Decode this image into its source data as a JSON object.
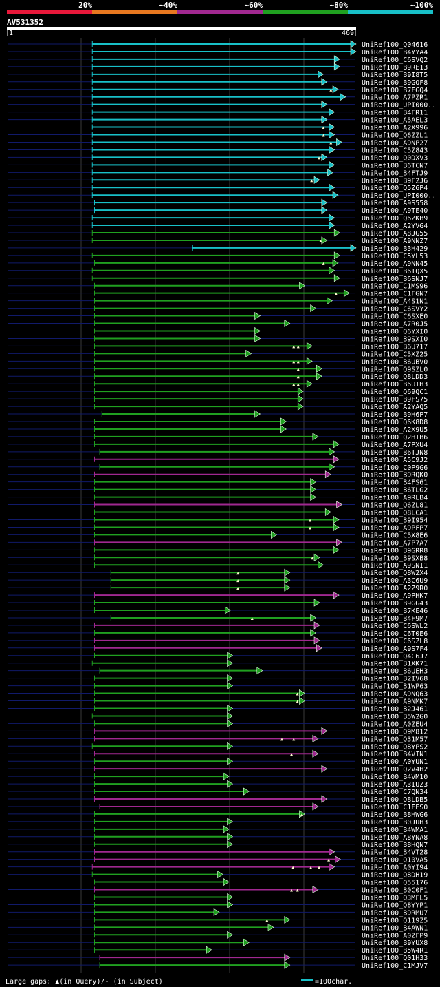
{
  "legend": {
    "thresholds": [
      "20%",
      "~40%",
      "~60%",
      "~80%",
      "~100%"
    ],
    "colors": [
      "#e8183a",
      "#e87820",
      "#a02890",
      "#20a020",
      "#18c0c8"
    ]
  },
  "query": {
    "name": "AV531352",
    "start": "1",
    "end": "469"
  },
  "footer": {
    "gaps_text": "Large gaps: ▲(in Query)/- (in Subject)",
    "scale_text": "=100char."
  },
  "chart_data": {
    "type": "alignment",
    "query_length": 469,
    "hits": [
      {
        "id": "UniRef100_Q04616",
        "cls": 4,
        "s": 115,
        "e": 469
      },
      {
        "id": "UniRef100_B4YYA4",
        "cls": 4,
        "s": 115,
        "e": 469
      },
      {
        "id": "UniRef100_C6SVQ2",
        "cls": 4,
        "s": 115,
        "e": 447
      },
      {
        "id": "UniRef100_B9RE13",
        "cls": 4,
        "s": 115,
        "e": 447
      },
      {
        "id": "UniRef100_B9I8T5",
        "cls": 4,
        "s": 115,
        "e": 425
      },
      {
        "id": "UniRef100_B9GQF8",
        "cls": 4,
        "s": 115,
        "e": 430
      },
      {
        "id": "UniRef100_B7FGQ4",
        "cls": 4,
        "s": 115,
        "e": 445,
        "g": [
          436
        ]
      },
      {
        "id": "UniRef100_A7PZR1",
        "cls": 4,
        "s": 115,
        "e": 455
      },
      {
        "id": "UniRef100_UPI000..",
        "cls": 4,
        "s": 115,
        "e": 430
      },
      {
        "id": "UniRef100_B4FR11",
        "cls": 4,
        "s": 115,
        "e": 440
      },
      {
        "id": "UniRef100_A5AEL3",
        "cls": 4,
        "s": 115,
        "e": 430
      },
      {
        "id": "UniRef100_A2X996",
        "cls": 4,
        "s": 115,
        "e": 440,
        "g": [
          426
        ]
      },
      {
        "id": "UniRef100_Q6ZZL1",
        "cls": 4,
        "s": 115,
        "e": 440,
        "g": [
          426
        ]
      },
      {
        "id": "UniRef100_A9NP27",
        "cls": 4,
        "s": 115,
        "e": 450,
        "g": [
          436
        ]
      },
      {
        "id": "UniRef100_C5Z843",
        "cls": 4,
        "s": 115,
        "e": 440
      },
      {
        "id": "UniRef100_Q0DXV3",
        "cls": 4,
        "s": 115,
        "e": 430,
        "g": [
          420
        ]
      },
      {
        "id": "UniRef100_B6TCN7",
        "cls": 4,
        "s": 115,
        "e": 440
      },
      {
        "id": "UniRef100_B4FTJ9",
        "cls": 4,
        "s": 115,
        "e": 438
      },
      {
        "id": "UniRef100_B9F2J6",
        "cls": 4,
        "s": 115,
        "e": 420,
        "g": [
          410
        ]
      },
      {
        "id": "UniRef100_Q5Z6P4",
        "cls": 4,
        "s": 115,
        "e": 440
      },
      {
        "id": "UniRef100_UPI000..",
        "cls": 4,
        "s": 115,
        "e": 445
      },
      {
        "id": "UniRef100_A9S558",
        "cls": 4,
        "s": 118,
        "e": 430
      },
      {
        "id": "UniRef100_A9TE40",
        "cls": 4,
        "s": 118,
        "e": 430
      },
      {
        "id": "UniRef100_Q6ZKB9",
        "cls": 4,
        "s": 115,
        "e": 440
      },
      {
        "id": "UniRef100_A2YVG4",
        "cls": 4,
        "s": 115,
        "e": 440
      },
      {
        "id": "UniRef100_A8JG55",
        "cls": 3,
        "s": 115,
        "e": 447
      },
      {
        "id": "UniRef100_A9NNZ7",
        "cls": 3,
        "s": 115,
        "e": 430,
        "g": [
          422
        ]
      },
      {
        "id": "UniRef100_B3H429",
        "cls": 4,
        "s": 250,
        "e": 469
      },
      {
        "id": "UniRef100_C5YL53",
        "cls": 3,
        "s": 115,
        "e": 447
      },
      {
        "id": "UniRef100_A9NN45",
        "cls": 3,
        "s": 118,
        "e": 445,
        "g": [
          426
        ]
      },
      {
        "id": "UniRef100_B6TQX5",
        "cls": 3,
        "s": 115,
        "e": 440
      },
      {
        "id": "UniRef100_B6SNJ7",
        "cls": 3,
        "s": 115,
        "e": 447
      },
      {
        "id": "UniRef100_C1MS96",
        "cls": 3,
        "s": 118,
        "e": 400
      },
      {
        "id": "UniRef100_C1FGN7",
        "cls": 3,
        "s": 118,
        "e": 460,
        "g": [
          443
        ]
      },
      {
        "id": "UniRef100_A4S1N1",
        "cls": 3,
        "s": 118,
        "e": 437
      },
      {
        "id": "UniRef100_C6SVY2",
        "cls": 3,
        "s": 118,
        "e": 415
      },
      {
        "id": "UniRef100_C6SXE0",
        "cls": 3,
        "s": 118,
        "e": 340
      },
      {
        "id": "UniRef100_A7R0J5",
        "cls": 3,
        "s": 118,
        "e": 380
      },
      {
        "id": "UniRef100_Q6YXI0",
        "cls": 3,
        "s": 118,
        "e": 340
      },
      {
        "id": "UniRef100_B9SXI0",
        "cls": 3,
        "s": 118,
        "e": 340
      },
      {
        "id": "UniRef100_B6U717",
        "cls": 3,
        "s": 118,
        "e": 410,
        "g": [
          386,
          392
        ]
      },
      {
        "id": "UniRef100_C5XZ25",
        "cls": 3,
        "s": 118,
        "e": 328
      },
      {
        "id": "UniRef100_B6UBV0",
        "cls": 3,
        "s": 118,
        "e": 410,
        "g": [
          386,
          392
        ]
      },
      {
        "id": "UniRef100_Q9SZL0",
        "cls": 3,
        "s": 118,
        "e": 423,
        "g": [
          392
        ]
      },
      {
        "id": "UniRef100_Q8LDD3",
        "cls": 3,
        "s": 118,
        "e": 423,
        "g": [
          392
        ]
      },
      {
        "id": "UniRef100_B6UTH3",
        "cls": 3,
        "s": 118,
        "e": 410,
        "g": [
          386,
          392
        ]
      },
      {
        "id": "UniRef100_Q69QC1",
        "cls": 3,
        "s": 118,
        "e": 398
      },
      {
        "id": "UniRef100_B9FS75",
        "cls": 3,
        "s": 118,
        "e": 398
      },
      {
        "id": "UniRef100_A2YAQ5",
        "cls": 3,
        "s": 118,
        "e": 398
      },
      {
        "id": "UniRef100_B9H6P7",
        "cls": 3,
        "s": 128,
        "e": 340
      },
      {
        "id": "UniRef100_Q6K8D8",
        "cls": 3,
        "s": 118,
        "e": 375
      },
      {
        "id": "UniRef100_A2X9U5",
        "cls": 3,
        "s": 118,
        "e": 375
      },
      {
        "id": "UniRef100_Q2HTB6",
        "cls": 3,
        "s": 118,
        "e": 418
      },
      {
        "id": "UniRef100_A7PXU4",
        "cls": 3,
        "s": 118,
        "e": 446
      },
      {
        "id": "UniRef100_B6TJN8",
        "cls": 3,
        "s": 125,
        "e": 440
      },
      {
        "id": "UniRef100_A5C9J2",
        "cls": 2,
        "s": 118,
        "e": 446
      },
      {
        "id": "UniRef100_C0P9G6",
        "cls": 3,
        "s": 125,
        "e": 440
      },
      {
        "id": "UniRef100_B9RQK0",
        "cls": 2,
        "s": 118,
        "e": 435
      },
      {
        "id": "UniRef100_B4FS61",
        "cls": 3,
        "s": 118,
        "e": 415
      },
      {
        "id": "UniRef100_B6TLG2",
        "cls": 3,
        "s": 118,
        "e": 415
      },
      {
        "id": "UniRef100_A9RLB4",
        "cls": 3,
        "s": 118,
        "e": 415
      },
      {
        "id": "UniRef100_Q6ZL81",
        "cls": 2,
        "s": 118,
        "e": 450
      },
      {
        "id": "UniRef100_Q8LCA1",
        "cls": 3,
        "s": 118,
        "e": 435
      },
      {
        "id": "UniRef100_B9I954",
        "cls": 3,
        "s": 118,
        "e": 446,
        "g": [
          408
        ]
      },
      {
        "id": "UniRef100_A9PFP7",
        "cls": 3,
        "s": 118,
        "e": 446,
        "g": [
          408
        ]
      },
      {
        "id": "UniRef100_C5X8E6",
        "cls": 3,
        "s": 118,
        "e": 362
      },
      {
        "id": "UniRef100_A7P7A7",
        "cls": 2,
        "s": 118,
        "e": 450
      },
      {
        "id": "UniRef100_B9GRR8",
        "cls": 3,
        "s": 118,
        "e": 446
      },
      {
        "id": "UniRef100_B9SXB8",
        "cls": 3,
        "s": 118,
        "e": 420,
        "g": [
          411
        ]
      },
      {
        "id": "UniRef100_A9SNI1",
        "cls": 3,
        "s": 118,
        "e": 425
      },
      {
        "id": "UniRef100_Q8W2X4",
        "cls": 3,
        "s": 140,
        "e": 380,
        "g": [
          311
        ]
      },
      {
        "id": "UniRef100_A3C6U9",
        "cls": 3,
        "s": 140,
        "e": 380,
        "g": [
          311
        ]
      },
      {
        "id": "UniRef100_A2Z9R0",
        "cls": 3,
        "s": 140,
        "e": 380,
        "g": [
          311
        ]
      },
      {
        "id": "UniRef100_A9PHK7",
        "cls": 2,
        "s": 118,
        "e": 446
      },
      {
        "id": "UniRef100_B9GG43",
        "cls": 3,
        "s": 118,
        "e": 420
      },
      {
        "id": "UniRef100_B7KE46",
        "cls": 3,
        "s": 118,
        "e": 300
      },
      {
        "id": "UniRef100_B4F9M7",
        "cls": 3,
        "s": 140,
        "e": 415,
        "g": [
          330
        ]
      },
      {
        "id": "UniRef100_C6SWL2",
        "cls": 2,
        "s": 118,
        "e": 420
      },
      {
        "id": "UniRef100_C6T0E6",
        "cls": 3,
        "s": 118,
        "e": 415
      },
      {
        "id": "UniRef100_C6SZL8",
        "cls": 2,
        "s": 118,
        "e": 420
      },
      {
        "id": "UniRef100_A9S7F4",
        "cls": 2,
        "s": 118,
        "e": 423
      },
      {
        "id": "UniRef100_Q4C6J7",
        "cls": 3,
        "s": 118,
        "e": 303
      },
      {
        "id": "UniRef100_B1XK71",
        "cls": 3,
        "s": 115,
        "e": 303
      },
      {
        "id": "UniRef100_B6UEH3",
        "cls": 3,
        "s": 125,
        "e": 343
      },
      {
        "id": "UniRef100_B2IV68",
        "cls": 3,
        "s": 118,
        "e": 303
      },
      {
        "id": "UniRef100_B1WP63",
        "cls": 3,
        "s": 118,
        "e": 303
      },
      {
        "id": "UniRef100_A9NQ63",
        "cls": 3,
        "s": 118,
        "e": 400,
        "g": [
          391
        ]
      },
      {
        "id": "UniRef100_A9NMK7",
        "cls": 3,
        "s": 118,
        "e": 400,
        "g": [
          391
        ]
      },
      {
        "id": "UniRef100_B2J461",
        "cls": 3,
        "s": 118,
        "e": 303
      },
      {
        "id": "UniRef100_B5W2G0",
        "cls": 3,
        "s": 115,
        "e": 303
      },
      {
        "id": "UniRef100_A0ZEU4",
        "cls": 3,
        "s": 118,
        "e": 303
      },
      {
        "id": "UniRef100_Q9M812",
        "cls": 2,
        "s": 118,
        "e": 430
      },
      {
        "id": "UniRef100_Q31M57",
        "cls": 2,
        "s": 118,
        "e": 418,
        "g": [
          370,
          386
        ]
      },
      {
        "id": "UniRef100_Q8YPS2",
        "cls": 3,
        "s": 115,
        "e": 303
      },
      {
        "id": "UniRef100_B4VIN1",
        "cls": 2,
        "s": 118,
        "e": 418,
        "g": [
          383
        ]
      },
      {
        "id": "UniRef100_A0YUN1",
        "cls": 3,
        "s": 118,
        "e": 303
      },
      {
        "id": "UniRef100_Q2V4H2",
        "cls": 2,
        "s": 118,
        "e": 430
      },
      {
        "id": "UniRef100_B4VM10",
        "cls": 3,
        "s": 118,
        "e": 298
      },
      {
        "id": "UniRef100_A3IUZ3",
        "cls": 3,
        "s": 118,
        "e": 303
      },
      {
        "id": "UniRef100_C7QN34",
        "cls": 3,
        "s": 118,
        "e": 325
      },
      {
        "id": "UniRef100_Q8LDB5",
        "cls": 2,
        "s": 118,
        "e": 430
      },
      {
        "id": "UniRef100_C1FES0",
        "cls": 2,
        "s": 125,
        "e": 418
      },
      {
        "id": "UniRef100_B8HWG6",
        "cls": 3,
        "s": 118,
        "e": 400,
        "g": [
          397
        ]
      },
      {
        "id": "UniRef100_B0JUH3",
        "cls": 3,
        "s": 118,
        "e": 303
      },
      {
        "id": "UniRef100_B4WMA1",
        "cls": 3,
        "s": 118,
        "e": 298
      },
      {
        "id": "UniRef100_A8YNA8",
        "cls": 3,
        "s": 118,
        "e": 303
      },
      {
        "id": "UniRef100_B8HQN7",
        "cls": 3,
        "s": 118,
        "e": 303
      },
      {
        "id": "UniRef100_B4VT28",
        "cls": 2,
        "s": 118,
        "e": 440
      },
      {
        "id": "UniRef100_Q10VA5",
        "cls": 2,
        "s": 118,
        "e": 448,
        "g": [
          433
        ]
      },
      {
        "id": "UniRef100_A0YI94",
        "cls": 2,
        "s": 115,
        "e": 440,
        "g": [
          385,
          409,
          420
        ]
      },
      {
        "id": "UniRef100_Q8DH19",
        "cls": 3,
        "s": 115,
        "e": 290
      },
      {
        "id": "UniRef100_Q55176",
        "cls": 3,
        "s": 118,
        "e": 298
      },
      {
        "id": "UniRef100_B0C0F1",
        "cls": 2,
        "s": 118,
        "e": 418,
        "g": [
          383,
          391
        ]
      },
      {
        "id": "UniRef100_Q3MFL5",
        "cls": 3,
        "s": 118,
        "e": 303
      },
      {
        "id": "UniRef100_Q8YYP1",
        "cls": 3,
        "s": 118,
        "e": 303
      },
      {
        "id": "UniRef100_B9RMU7",
        "cls": 3,
        "s": 118,
        "e": 285
      },
      {
        "id": "UniRef100_Q119Z5",
        "cls": 3,
        "s": 118,
        "e": 380,
        "g": [
          350
        ]
      },
      {
        "id": "UniRef100_B4AWN1",
        "cls": 3,
        "s": 118,
        "e": 358
      },
      {
        "id": "UniRef100_A0ZFP9",
        "cls": 3,
        "s": 118,
        "e": 303
      },
      {
        "id": "UniRef100_B9YUX8",
        "cls": 3,
        "s": 118,
        "e": 325
      },
      {
        "id": "UniRef100_B5W4R1",
        "cls": 3,
        "s": 118,
        "e": 275
      },
      {
        "id": "UniRef100_Q01H33",
        "cls": 2,
        "s": 125,
        "e": 380
      },
      {
        "id": "UniRef100_C1MJV7",
        "cls": 3,
        "s": 125,
        "e": 380
      }
    ]
  }
}
